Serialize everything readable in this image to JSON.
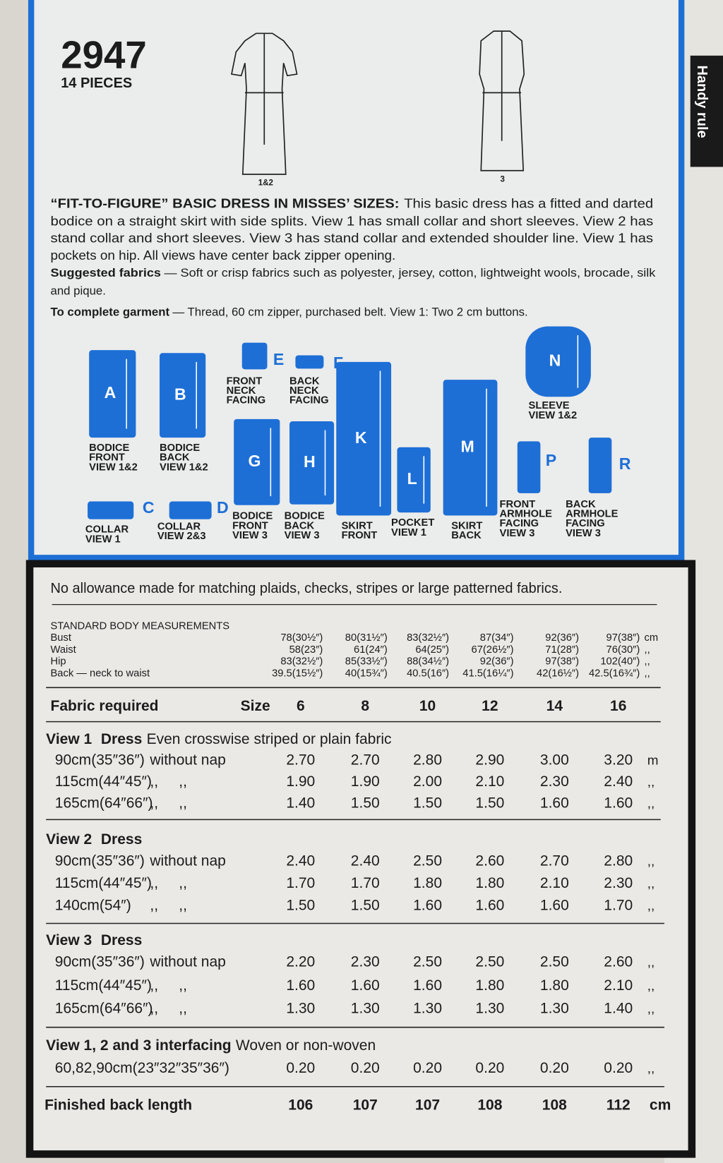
{
  "header": {
    "number": "2947",
    "pieces": "14 PIECES"
  },
  "views": [
    "1&2",
    "3"
  ],
  "side_tab": "Handy rule",
  "description": {
    "title": "“FIT-TO-FIGURE” BASIC DRESS IN MISSES’ SIZES:",
    "lines": [
      "This basic dress has a fitted and darted",
      "bodice on a straight skirt with side splits. View 1 has small collar and short sleeves. View 2 has",
      "stand collar and short sleeves. View 3 has stand collar and extended shoulder line. View 1 has",
      "pockets on hip. All views have center back zipper opening."
    ]
  },
  "suggested_fabrics": {
    "label": "Suggested fabrics",
    "lines": [
      "— Soft or crisp fabrics such as polyester, jersey, cotton, lightweight wools, brocade, silk",
      "and pique."
    ]
  },
  "to_complete": {
    "label": "To complete garment",
    "text": "— Thread, 60 cm zipper, purchased belt. View 1: Two 2 cm buttons."
  },
  "pieces": [
    {
      "letter": "A",
      "lines": [
        "BODICE",
        "FRONT",
        "VIEW 1&2"
      ]
    },
    {
      "letter": "B",
      "lines": [
        "BODICE",
        "BACK",
        "VIEW 1&2"
      ]
    },
    {
      "letter": "C",
      "lines": [
        "COLLAR",
        "VIEW 1"
      ]
    },
    {
      "letter": "D",
      "lines": [
        "COLLAR",
        "VIEW 2&3"
      ]
    },
    {
      "letter": "E",
      "lines": [
        "FRONT",
        "NECK",
        "FACING"
      ]
    },
    {
      "letter": "F",
      "lines": [
        "BACK",
        "NECK",
        "FACING"
      ]
    },
    {
      "letter": "G",
      "lines": [
        "BODICE",
        "FRONT",
        "VIEW 3"
      ]
    },
    {
      "letter": "H",
      "lines": [
        "BODICE",
        "BACK",
        "VIEW 3"
      ]
    },
    {
      "letter": "K",
      "lines": [
        "SKIRT",
        "FRONT"
      ]
    },
    {
      "letter": "L",
      "lines": [
        "POCKET",
        "VIEW 1"
      ]
    },
    {
      "letter": "M",
      "lines": [
        "SKIRT",
        "BACK"
      ]
    },
    {
      "letter": "N",
      "lines": [
        "SLEEVE",
        "VIEW 1&2"
      ]
    },
    {
      "letter": "P",
      "lines": [
        "FRONT",
        "ARMHOLE",
        "FACING",
        "VIEW 3"
      ]
    },
    {
      "letter": "R",
      "lines": [
        "BACK",
        "ARMHOLE",
        "FACING",
        "VIEW 3"
      ]
    }
  ],
  "note": "No allowance made for matching plaids, checks, stripes or large patterned fabrics.",
  "measurements": {
    "title": "STANDARD BODY MEASUREMENTS",
    "rows": [
      {
        "label": "Bust",
        "values": [
          "78(30½″)",
          "80(31½″)",
          "83(32½″)",
          "87(34″)",
          "92(36″)",
          "97(38″)"
        ],
        "unit": "cm"
      },
      {
        "label": "Waist",
        "values": [
          "58(23″)",
          "61(24″)",
          "64(25″)",
          "67(26½″)",
          "71(28″)",
          "76(30″)"
        ],
        "unit": ",,"
      },
      {
        "label": "Hip",
        "values": [
          "83(32½″)",
          "85(33½″)",
          "88(34½″)",
          "92(36″)",
          "97(38″)",
          "102(40″)"
        ],
        "unit": ",,"
      },
      {
        "label": "Back — neck to waist",
        "values": [
          "39.5(15½″)",
          "40(15¾″)",
          "40.5(16″)",
          "41.5(16¼″)",
          "42(16½″)",
          "42.5(16¾″)"
        ],
        "unit": ",,"
      }
    ]
  },
  "fabric": {
    "label": "Fabric required",
    "size_label": "Size",
    "sizes": [
      "6",
      "8",
      "10",
      "12",
      "14",
      "16"
    ],
    "groups": [
      {
        "title": "View 1",
        "garment": "Dress",
        "note": "Even crosswise striped or plain fabric",
        "rows": [
          {
            "width": "90cm(35″36″)",
            "nap": "without nap",
            "values": [
              "2.70",
              "2.70",
              "2.80",
              "2.90",
              "3.00",
              "3.20"
            ],
            "unit": "m"
          },
          {
            "width": "115cm(44″45″)",
            "nap": ",,     ,,",
            "values": [
              "1.90",
              "1.90",
              "2.00",
              "2.10",
              "2.30",
              "2.40"
            ],
            "unit": ",,"
          },
          {
            "width": "165cm(64″66″)",
            "nap": ",,     ,,",
            "values": [
              "1.40",
              "1.50",
              "1.50",
              "1.50",
              "1.60",
              "1.60"
            ],
            "unit": ",,"
          }
        ]
      },
      {
        "title": "View 2",
        "garment": "Dress",
        "rows": [
          {
            "width": "90cm(35″36″)",
            "nap": "without nap",
            "values": [
              "2.40",
              "2.40",
              "2.50",
              "2.60",
              "2.70",
              "2.80"
            ],
            "unit": ",,"
          },
          {
            "width": "115cm(44″45″)",
            "nap": ",,     ,,",
            "values": [
              "1.70",
              "1.70",
              "1.80",
              "1.80",
              "2.10",
              "2.30"
            ],
            "unit": ",,"
          },
          {
            "width": "140cm(54″)",
            "nap": ",,     ,,",
            "values": [
              "1.50",
              "1.50",
              "1.60",
              "1.60",
              "1.60",
              "1.70"
            ],
            "unit": ",,"
          }
        ]
      },
      {
        "title": "View 3",
        "garment": "Dress",
        "rows": [
          {
            "width": "90cm(35″36″)",
            "nap": "without nap",
            "values": [
              "2.20",
              "2.30",
              "2.50",
              "2.50",
              "2.50",
              "2.60"
            ],
            "unit": ",,"
          },
          {
            "width": "115cm(44″45″)",
            "nap": ",,     ,,",
            "values": [
              "1.60",
              "1.60",
              "1.60",
              "1.80",
              "1.80",
              "2.10"
            ],
            "unit": ",,"
          },
          {
            "width": "165cm(64″66″)",
            "nap": ",,     ,,",
            "values": [
              "1.30",
              "1.30",
              "1.30",
              "1.30",
              "1.30",
              "1.40"
            ],
            "unit": ",,"
          }
        ]
      },
      {
        "title": "View 1, 2 and 3 interfacing",
        "note": "Woven or non-woven",
        "rows": [
          {
            "width": "60,82,90cm(23″32″35″36″)",
            "values": [
              "0.20",
              "0.20",
              "0.20",
              "0.20",
              "0.20",
              "0.20"
            ],
            "unit": ",,"
          }
        ]
      }
    ],
    "finished": {
      "label": "Finished back length",
      "values": [
        "106",
        "107",
        "107",
        "108",
        "108",
        "112"
      ],
      "unit": "cm"
    }
  }
}
